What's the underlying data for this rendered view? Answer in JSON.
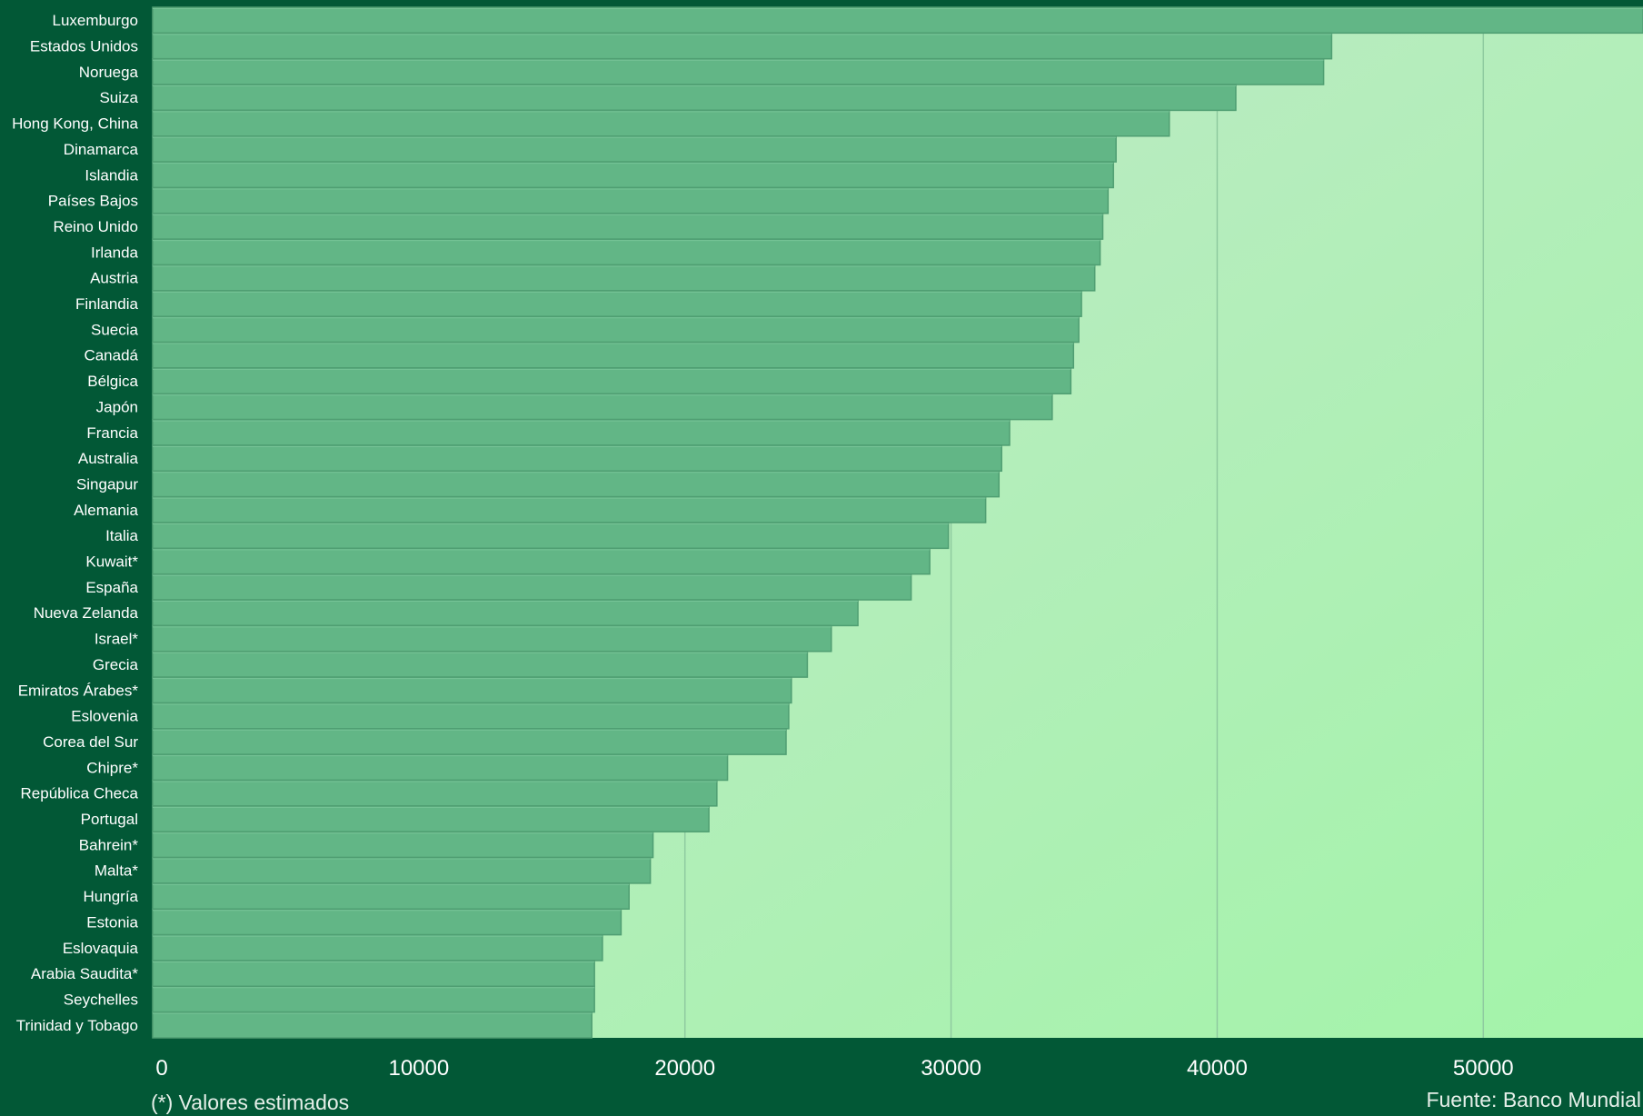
{
  "chart_data": {
    "type": "bar",
    "orientation": "horizontal",
    "categories": [
      "Luxemburgo",
      "Estados Unidos",
      "Noruega",
      "Suiza",
      "Hong Kong, China",
      "Dinamarca",
      "Islandia",
      "Países Bajos",
      "Reino Unido",
      "Irlanda",
      "Austria",
      "Finlandia",
      "Suecia",
      "Canadá",
      "Bélgica",
      "Japón",
      "Francia",
      "Australia",
      "Singapur",
      "Alemania",
      "Italia",
      "Kuwait*",
      "España",
      "Nueva Zelanda",
      "Israel*",
      "Grecia",
      "Emiratos Árabes*",
      "Eslovenia",
      "Corea del Sur",
      "Chipre*",
      "República Checa",
      "Portugal",
      "Bahrein*",
      "Malta*",
      "Hungría",
      "Estonia",
      "Eslovaquia",
      "Arabia Saudita*",
      "Seychelles",
      "Trinidad y Tobago"
    ],
    "values": [
      56000,
      44300,
      44000,
      40700,
      38200,
      36200,
      36100,
      35900,
      35700,
      35600,
      35400,
      34900,
      34800,
      34600,
      34500,
      33800,
      32200,
      31900,
      31800,
      31300,
      29900,
      29200,
      28500,
      26500,
      25500,
      24600,
      24000,
      23900,
      23800,
      21600,
      21200,
      20900,
      18800,
      18700,
      17900,
      17600,
      16900,
      16600,
      16600,
      16500
    ],
    "xlim": [
      0,
      56000
    ],
    "xticks": [
      0,
      10000,
      20000,
      30000,
      40000,
      50000
    ],
    "xtick_labels": [
      "0",
      "10000",
      "20000",
      "30000",
      "40000",
      "50000"
    ],
    "grid": true,
    "title": "",
    "xlabel": "",
    "ylabel": "",
    "footnote": "(*) Valores estimados",
    "source": "Fuente: Banco Mundial"
  },
  "colors": {
    "frame": "#025836",
    "bar": "#62b686",
    "bar_edge": "#4f9e72",
    "bar_highlight": "#77c497",
    "grid": "#8fcba0",
    "plot_bg_start": "#c4e7cc",
    "plot_bg_end": "#a3f4a9",
    "text": "#ffffff"
  }
}
